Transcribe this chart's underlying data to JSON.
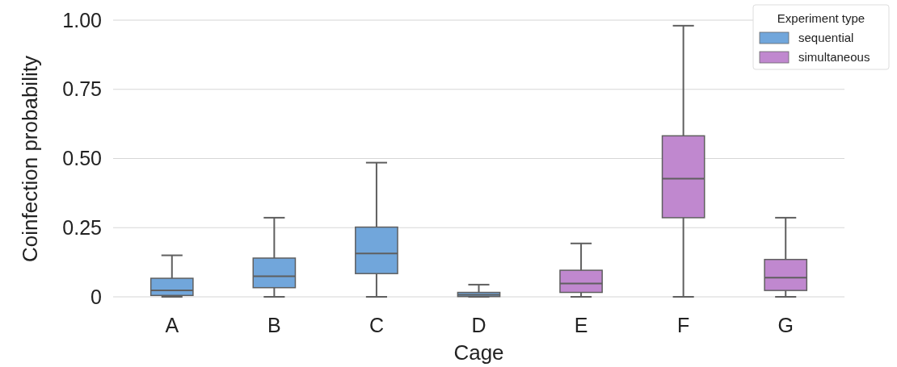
{
  "chart_data": {
    "type": "box",
    "xlabel": "Cage",
    "ylabel": "Coinfection probability",
    "legend_title": "Experiment type",
    "categories": [
      "A",
      "B",
      "C",
      "D",
      "E",
      "F",
      "G"
    ],
    "ylim": [
      0,
      1
    ],
    "yticks": [
      0,
      {
        "value": 0.25,
        "label": "0.25"
      },
      {
        "value": 0.5,
        "label": "0.50"
      },
      {
        "value": 0.75,
        "label": "0.75"
      },
      {
        "value": 1,
        "label": "1.00"
      }
    ],
    "grid": "y",
    "legend": "top right",
    "series": [
      {
        "name": "sequential",
        "color": "#71a6db",
        "boxes": [
          {
            "low": 0,
            "q1": 0.005,
            "median": 0.023,
            "q3": 0.067,
            "high": 0.15
          },
          {
            "low": 0,
            "q1": 0.033,
            "median": 0.074,
            "q3": 0.14,
            "high": 0.286
          },
          {
            "low": 0,
            "q1": 0.084,
            "median": 0.157,
            "q3": 0.252,
            "high": 0.485
          },
          {
            "low": 0,
            "q1": 0.001,
            "median": 0.007,
            "q3": 0.016,
            "high": 0.044
          },
          null,
          null,
          null
        ]
      },
      {
        "name": "simultaneous",
        "color": "#c088cf",
        "boxes": [
          null,
          null,
          null,
          null,
          {
            "low": 0,
            "q1": 0.016,
            "median": 0.048,
            "q3": 0.096,
            "high": 0.193
          },
          {
            "low": 0,
            "q1": 0.286,
            "median": 0.427,
            "q3": 0.582,
            "high": 0.98
          },
          {
            "low": 0,
            "q1": 0.023,
            "median": 0.069,
            "q3": 0.135,
            "high": 0.286
          }
        ]
      }
    ]
  }
}
